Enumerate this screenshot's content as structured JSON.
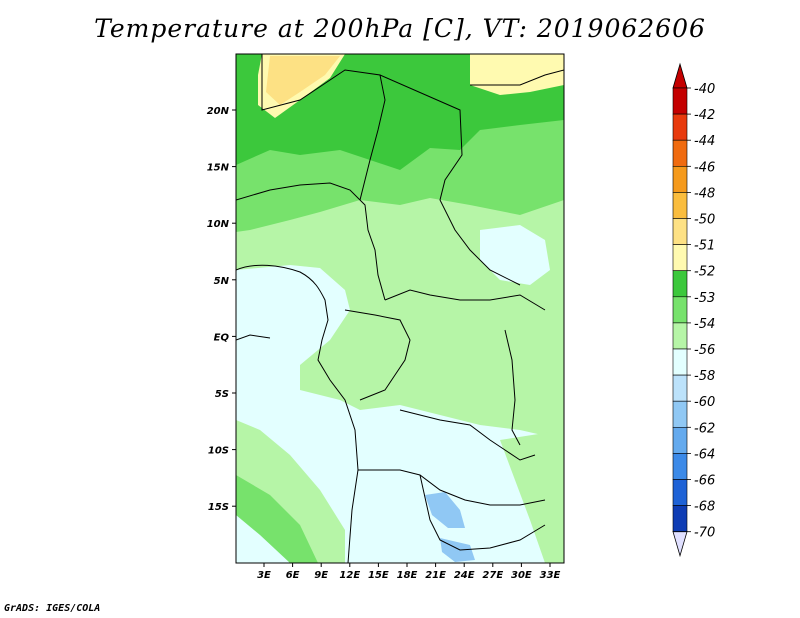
{
  "title": "Temperature at 200hPa [C], VT: 2019062606",
  "credit": "GrADS: IGES/COLA",
  "map": {
    "lat_ticks": [
      "20N",
      "15N",
      "10N",
      "5N",
      "EQ",
      "5S",
      "10S",
      "15S"
    ],
    "lon_ticks": [
      "3E",
      "6E",
      "9E",
      "12E",
      "15E",
      "18E",
      "21E",
      "24E",
      "27E",
      "30E",
      "33E"
    ]
  },
  "colorbar": {
    "levels": [
      {
        "label": "-40",
        "color": "#c40000"
      },
      {
        "label": "-42",
        "color": "#e83a0d"
      },
      {
        "label": "-44",
        "color": "#f06b0f"
      },
      {
        "label": "-46",
        "color": "#f59a1c"
      },
      {
        "label": "-48",
        "color": "#fabd3e"
      },
      {
        "label": "-50",
        "color": "#fde184"
      },
      {
        "label": "-51",
        "color": "#fffab0"
      },
      {
        "label": "-52",
        "color": "#3cc83c"
      },
      {
        "label": "-53",
        "color": "#77e26c"
      },
      {
        "label": "-54",
        "color": "#b6f5a7"
      },
      {
        "label": "-56",
        "color": "#e3ffff"
      },
      {
        "label": "-58",
        "color": "#bce2fb"
      },
      {
        "label": "-60",
        "color": "#90c8f4"
      },
      {
        "label": "-62",
        "color": "#64aaee"
      },
      {
        "label": "-64",
        "color": "#3c8ae8"
      },
      {
        "label": "-66",
        "color": "#1e62d6"
      },
      {
        "label": "-68",
        "color": "#0e3cb4"
      },
      {
        "label": "-70",
        "color": "#081c7a"
      }
    ],
    "under_color": "#e0e0ff"
  }
}
